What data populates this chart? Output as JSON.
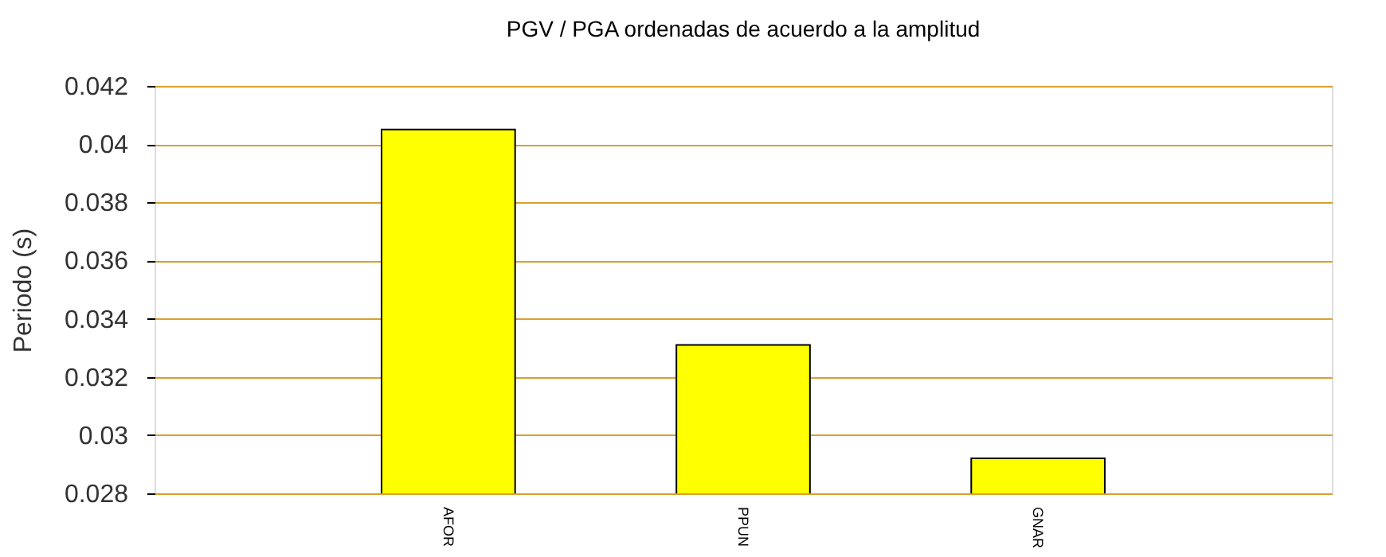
{
  "chart_data": {
    "type": "bar",
    "title": "PGV / PGA ordenadas de acuerdo a la amplitud",
    "ylabel": "Periodo (s)",
    "categories": [
      "AFOR",
      "PPUN",
      "GNAR"
    ],
    "values": [
      0.0405,
      0.0331,
      0.0292
    ],
    "color": "#ffff00",
    "ylim": [
      0.028,
      0.042
    ],
    "yticks": [
      0.028,
      0.03,
      0.032,
      0.034,
      0.036,
      0.038,
      0.04,
      0.042
    ],
    "grid": "y"
  }
}
